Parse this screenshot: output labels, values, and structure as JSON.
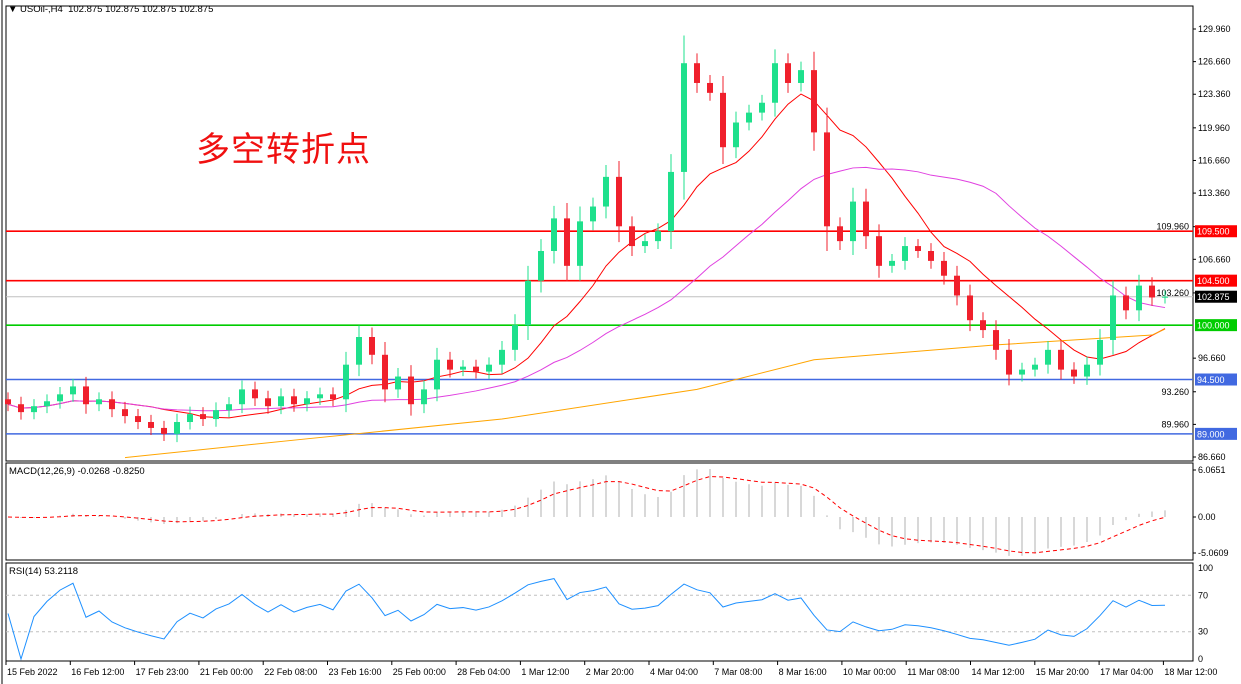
{
  "header": {
    "arrow": "▼",
    "symbol": "USOil-,H4",
    "ohlc": "102.875 102.875 102.875 102.875"
  },
  "annotation": "多空转折点",
  "macd_label": "MACD(12,26,9) -0.0268 -0.8250",
  "rsi_label": "RSI(14) 53.2118",
  "chart_data": {
    "type": "candlestick",
    "price_axis": {
      "range": [
        86.66,
        129.96
      ],
      "ticks": [
        "129.960",
        "126.660",
        "123.360",
        "119.960",
        "116.660",
        "113.360",
        "109.960",
        "106.660",
        "103.260",
        "96.660",
        "93.260",
        "89.960",
        "86.660"
      ]
    },
    "time_labels": [
      "15 Feb 2022",
      "16 Feb 12:00",
      "17 Feb 23:00",
      "21 Feb 00:00",
      "22 Feb 08:00",
      "23 Feb 16:00",
      "25 Feb 00:00",
      "28 Feb 04:00",
      "1 Mar 12:00",
      "2 Mar 20:00",
      "4 Mar 04:00",
      "7 Mar 08:00",
      "8 Mar 16:00",
      "10 Mar 00:00",
      "11 Mar 08:00",
      "14 Mar 12:00",
      "15 Mar 20:00",
      "17 Mar 04:00",
      "18 Mar 12:00"
    ],
    "closes": [
      92.0,
      91.2,
      91.8,
      92.3,
      93.0,
      93.8,
      92.0,
      92.5,
      91.5,
      90.8,
      90.2,
      89.6,
      89.0,
      90.2,
      91.0,
      90.5,
      91.4,
      92.0,
      93.5,
      92.6,
      91.8,
      92.8,
      92.0,
      92.6,
      93.0,
      92.5,
      96.0,
      98.8,
      97.0,
      93.5,
      94.8,
      92.0,
      93.5,
      96.5,
      95.5,
      95.8,
      95.3,
      96.0,
      97.5,
      100.0,
      104.5,
      107.5,
      110.8,
      106.0,
      110.5,
      112.0,
      115.0,
      110.0,
      108.0,
      108.5,
      109.5,
      115.5,
      126.5,
      124.5,
      123.5,
      118.0,
      120.5,
      121.5,
      122.5,
      126.5,
      124.5,
      125.8,
      119.5,
      110.0,
      108.5,
      112.5,
      109.0,
      106.0,
      106.5,
      108.0,
      107.5,
      106.5,
      105.0,
      103.0,
      100.5,
      99.5,
      97.5,
      95.0,
      95.5,
      96.0,
      97.5,
      95.5,
      94.8,
      96.0,
      98.5,
      103.0,
      101.5,
      104.0,
      102.8,
      102.875
    ],
    "long_ma": [
      [
        9,
        86.6
      ],
      [
        23,
        88.5
      ],
      [
        38,
        90.5
      ],
      [
        53,
        93.5
      ],
      [
        62,
        96.5
      ],
      [
        76,
        98.0
      ],
      [
        88,
        99.0
      ],
      [
        89,
        99.6
      ]
    ],
    "levels": [
      {
        "value": 109.5,
        "label": "109.500",
        "color": "#ff0000"
      },
      {
        "value": 104.5,
        "label": "104.500",
        "color": "#ff0000"
      },
      {
        "value": 102.875,
        "label": "102.875",
        "color": "#000000",
        "line": "#c0c0c0"
      },
      {
        "value": 100.0,
        "label": "100.000",
        "color": "#00cc00"
      },
      {
        "value": 94.5,
        "label": "94.500",
        "color": "#4169e1"
      },
      {
        "value": 89.0,
        "label": "89.000",
        "color": "#4169e1"
      }
    ],
    "macd_axis": [
      "6.0651",
      "0.00",
      "-5.0609"
    ],
    "rsi_axis": [
      "100",
      "70",
      "30",
      "0"
    ],
    "colors": {
      "up": "#1ee08c",
      "down": "#f0202c",
      "ma_fast": "#ff0000",
      "ma_mid": "#e040e0",
      "ma_long": "#ffa500"
    }
  }
}
